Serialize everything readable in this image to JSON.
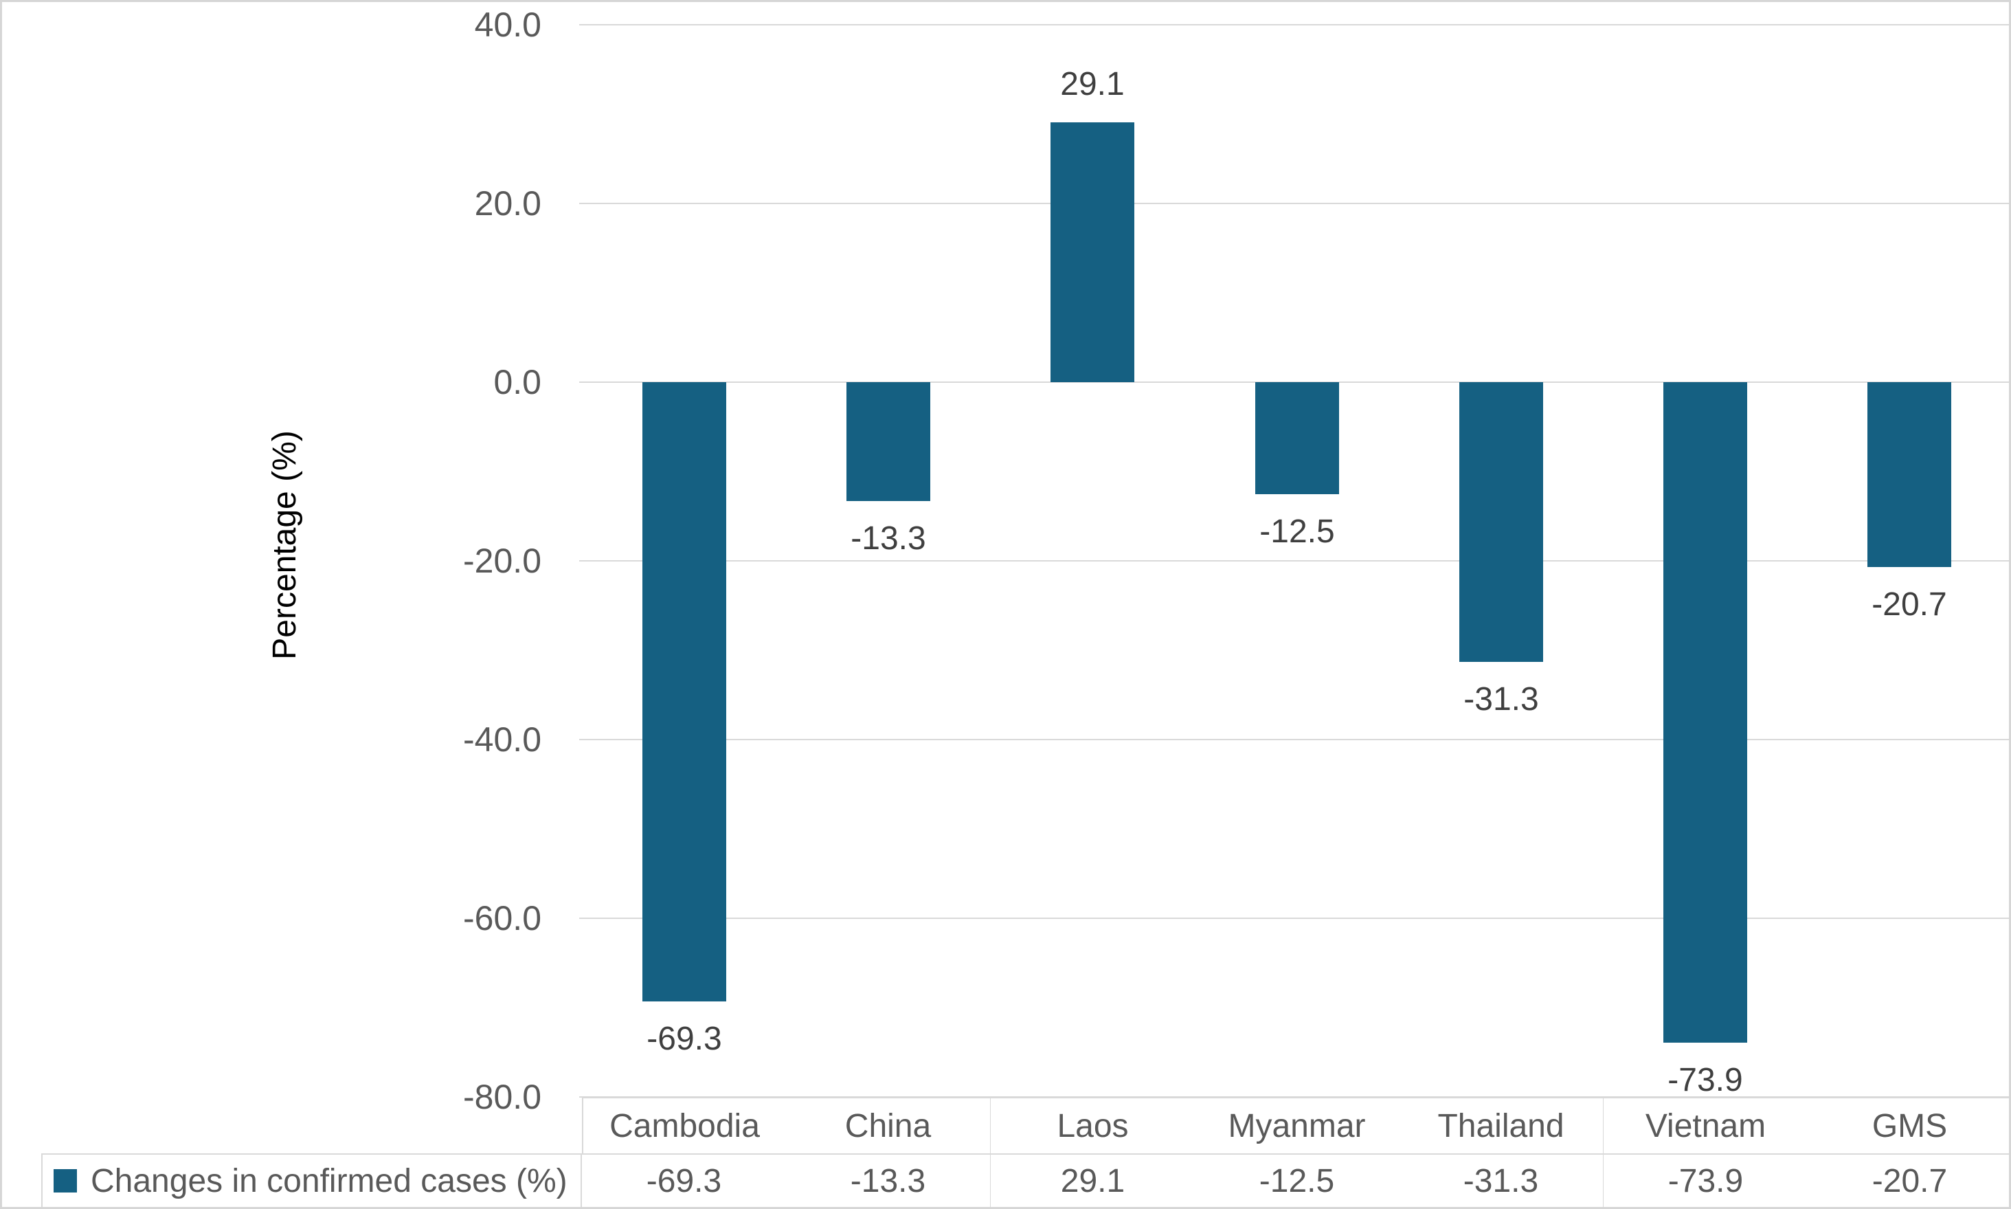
{
  "chart_data": {
    "type": "bar",
    "title": "",
    "xlabel": "",
    "ylabel": "Percentage (%)",
    "categories": [
      "Cambodia",
      "China",
      "Laos",
      "Myanmar",
      "Thailand",
      "Vietnam",
      "GMS"
    ],
    "series": [
      {
        "name": "Changes in confirmed cases (%)",
        "values": [
          -69.3,
          -13.3,
          29.1,
          -12.5,
          -31.3,
          -73.9,
          -20.7
        ]
      }
    ],
    "data_labels": [
      "-69.3",
      "-13.3",
      "29.1",
      "-12.5",
      "-31.3",
      "-73.9",
      "-20.7"
    ],
    "yticks": [
      {
        "value": 40,
        "label": "40.0"
      },
      {
        "value": 20,
        "label": "20.0"
      },
      {
        "value": 0,
        "label": "0.0"
      },
      {
        "value": -20,
        "label": "-20.0"
      },
      {
        "value": -40,
        "label": "-40.0"
      },
      {
        "value": -60,
        "label": "-60.0"
      },
      {
        "value": -80,
        "label": "-80.0"
      }
    ],
    "ylim": [
      -80,
      40
    ],
    "grid": true,
    "legend_position": "bottom-left-of-data-table",
    "table": {
      "legend_label": "Changes in confirmed cases (%)",
      "headers": [
        "Cambodia",
        "China",
        "Laos",
        "Myanmar",
        "Thailand",
        "Vietnam",
        "GMS"
      ],
      "values": [
        "-69.3",
        "-13.3",
        "29.1",
        "-12.5",
        "-31.3",
        "-73.9",
        "-20.7"
      ]
    },
    "colors": {
      "bar": "#156082",
      "grid": "#D9D9D9",
      "axis_text": "#595959",
      "data_label_text": "#3F3F3F",
      "table_text": "#595959",
      "table_border": "#D9D9D9",
      "outer_border": "#D6D6D6"
    }
  }
}
